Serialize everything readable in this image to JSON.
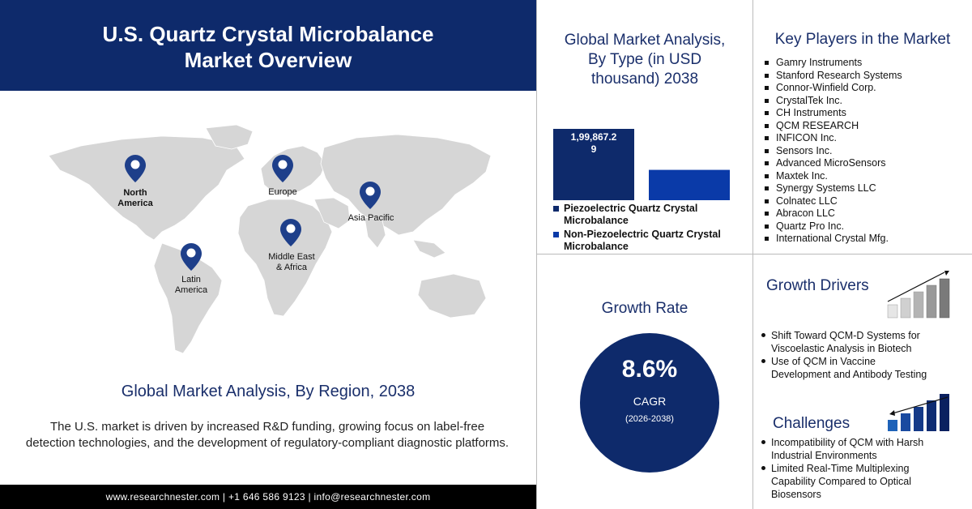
{
  "header": {
    "title_line1": "U.S. Quartz Crystal Microbalance",
    "title_line2": "Market Overview"
  },
  "map": {
    "regions": [
      {
        "label_line1": "North",
        "label_line2": "America",
        "bold": true
      },
      {
        "label_line1": "Europe",
        "label_line2": "",
        "bold": false
      },
      {
        "label_line1": "Asia Pacific",
        "label_line2": "",
        "bold": false
      },
      {
        "label_line1": "Middle East",
        "label_line2": "& Africa",
        "bold": false
      },
      {
        "label_line1": "Latin",
        "label_line2": "America",
        "bold": false
      }
    ],
    "title": "Global Market Analysis, By Region, 2038",
    "description": "The U.S. market is driven by increased R&D funding, growing focus on label-free detection technologies, and the development of regulatory-compliant diagnostic platforms."
  },
  "footer": {
    "contact": "www.researchnester.com  | +1 646 586 9123 | info@researchnester.com"
  },
  "chart_data": {
    "type": "bar",
    "title": "Global Market Analysis, By Type (in USD thousand) 2038",
    "title_line1": "Global Market Analysis,",
    "title_line2": "By Type (in USD",
    "title_line3": "thousand) 2038",
    "categories": [
      "Piezoelectric Quartz Crystal Microbalance",
      "Non-Piezoelectric Quartz Crystal Microbalance"
    ],
    "values": [
      199867.29,
      85000
    ],
    "data_labels": [
      "1,99,867.2\n9",
      ""
    ],
    "data_label_line1": "1,99,867.2",
    "data_label_line2": "9",
    "colors": [
      "#0e2a6b",
      "#0a3aa8"
    ],
    "legend": [
      {
        "line1": "Piezoelectric Quartz Crystal",
        "line2": "Microbalance",
        "color": "#0e2a6b"
      },
      {
        "line1": "Non-Piezoelectric Quartz Crystal",
        "line2": "Microbalance",
        "color": "#0a3aa8"
      }
    ],
    "legend_position": "bottom",
    "ylim": [
      0,
      199867.29
    ],
    "grid": false
  },
  "players": {
    "title": "Key Players in the Market",
    "items": [
      "Gamry Instruments",
      "Stanford Research Systems",
      "Connor-Winfield Corp.",
      "CrystalTek Inc.",
      "CH Instruments",
      "QCM RESEARCH",
      "INFICON Inc.",
      "Sensors Inc.",
      "Advanced MicroSensors",
      "Maxtek Inc.",
      "Synergy Systems LLC",
      "Colnatec LLC",
      "Abracon LLC",
      "Quartz Pro Inc.",
      "International Crystal Mfg."
    ]
  },
  "growth": {
    "title": "Growth Rate",
    "value": "8.6%",
    "label": "CAGR",
    "period": "(2026-2038)",
    "circle_color": "#0e2a6b"
  },
  "drivers": {
    "title": "Growth Drivers",
    "items": [
      {
        "line1": "Shift Toward  QCM-D  Systems for",
        "line2": "Viscoelastic Analysis in Biotech"
      },
      {
        "line1": "Use of QCM in Vaccine",
        "line2": "Development  and Antibody Testing"
      }
    ]
  },
  "challenges": {
    "title": "Challenges",
    "items": [
      {
        "line1": "Incompatibility of QCM with Harsh",
        "line2": "Industrial Environments",
        "line3": ""
      },
      {
        "line1": "Limited Real-Time  Multiplexing",
        "line2": "Capability Compared  to Optical",
        "line3": "Biosensors"
      }
    ]
  },
  "icons": {
    "pin": "location-pin-icon",
    "growth_chart": "growth-bar-chart-icon",
    "decline_chart": "decline-bar-chart-icon"
  },
  "colors": {
    "navy": "#0e2a6b",
    "title_text": "#1a2f6b",
    "map_land": "#d6d6d6"
  }
}
